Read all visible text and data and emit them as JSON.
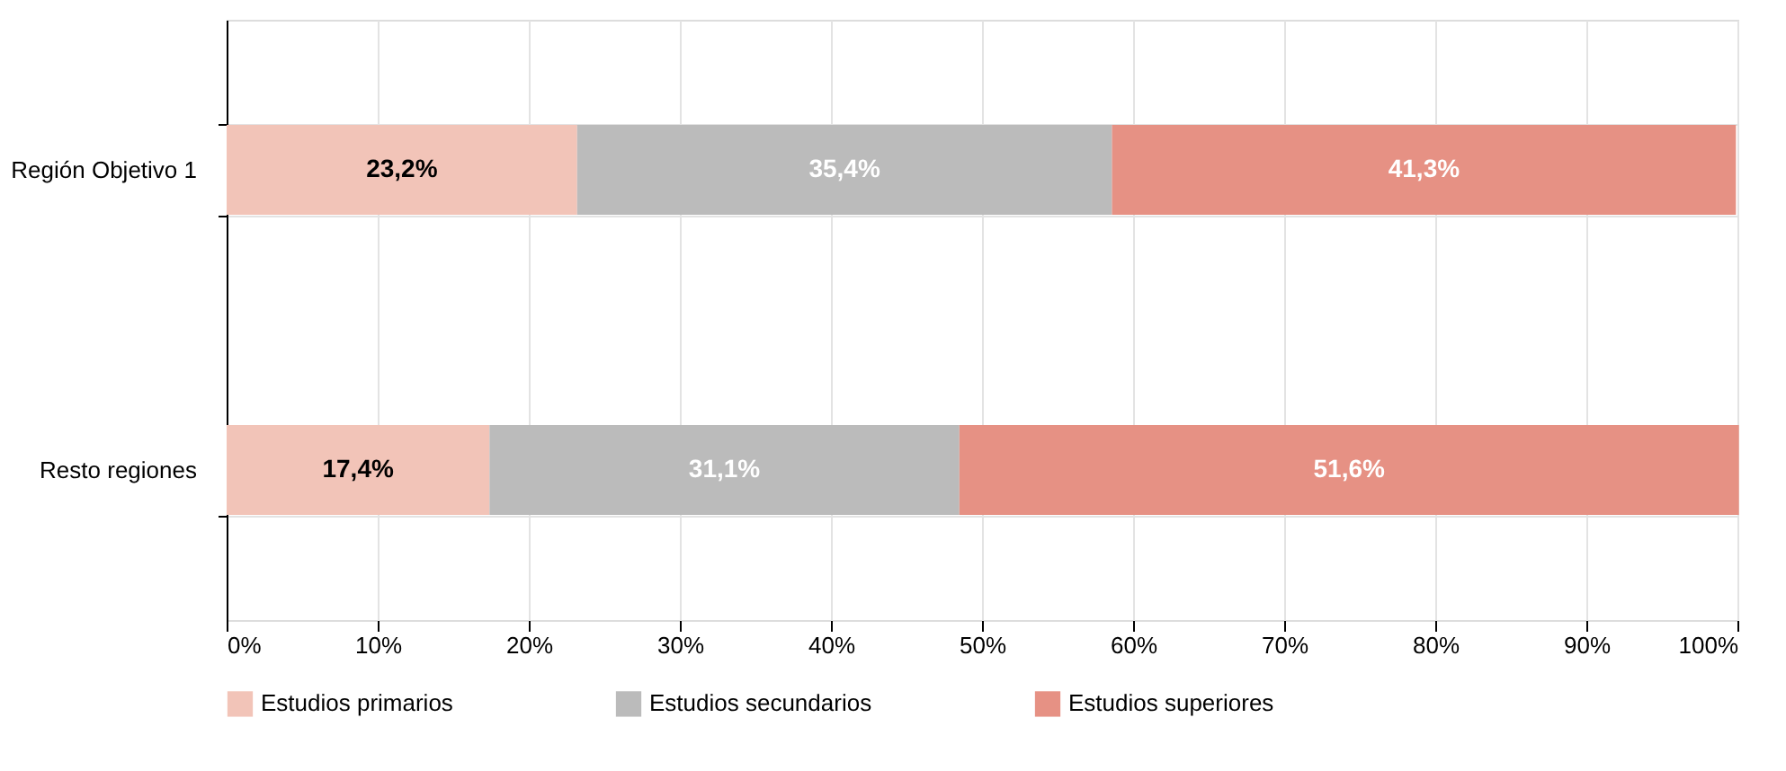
{
  "chart_data": {
    "type": "bar",
    "orientation": "horizontal",
    "stacked": true,
    "categories": [
      "Región Objetivo 1",
      "Resto regiones"
    ],
    "series": [
      {
        "name": "Estudios primarios",
        "color": "#f2c4b8",
        "values": [
          23.2,
          17.4
        ],
        "value_labels": [
          "23,2%",
          "17,4%"
        ]
      },
      {
        "name": "Estudios secundarios",
        "color": "#bbbbbb",
        "values": [
          35.4,
          31.1
        ],
        "value_labels": [
          "35,4%",
          "31,1%"
        ]
      },
      {
        "name": "Estudios superiores",
        "color": "#e69184",
        "values": [
          41.3,
          51.6
        ],
        "value_labels": [
          "41,3%",
          "51,6%"
        ]
      }
    ],
    "xlim": [
      0,
      100
    ],
    "xticks": [
      {
        "value": 0,
        "label": "0%"
      },
      {
        "value": 10,
        "label": "10%"
      },
      {
        "value": 20,
        "label": "20%"
      },
      {
        "value": 30,
        "label": "30%"
      },
      {
        "value": 40,
        "label": "40%"
      },
      {
        "value": 50,
        "label": "50%"
      },
      {
        "value": 60,
        "label": "60%"
      },
      {
        "value": 70,
        "label": "70%"
      },
      {
        "value": 80,
        "label": "80%"
      },
      {
        "value": 90,
        "label": "90%"
      },
      {
        "value": 100,
        "label": "100%"
      }
    ],
    "grid": true,
    "legend": "bottom"
  }
}
